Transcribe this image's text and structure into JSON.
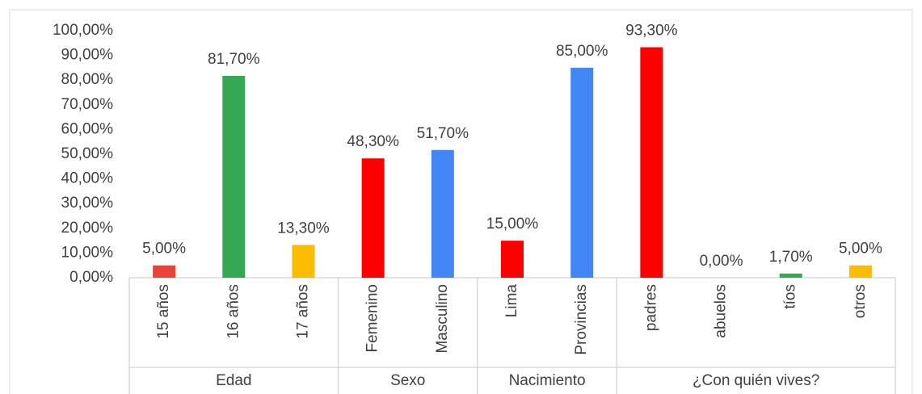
{
  "chart_data": {
    "type": "bar",
    "categories": [
      "15 años",
      "16 años",
      "17 años",
      "Femenino",
      "Masculino",
      "Lima",
      "Provincias",
      "padres",
      "abuelos",
      "tíos",
      "otros"
    ],
    "values": [
      5,
      81.7,
      13.3,
      48.3,
      51.7,
      15,
      85,
      93.3,
      0,
      1.7,
      5
    ],
    "value_labels": [
      "5,00%",
      "81,70%",
      "13,30%",
      "48,30%",
      "51,70%",
      "15,00%",
      "85,00%",
      "93,30%",
      "0,00%",
      "1,70%",
      "5,00%"
    ],
    "colors": [
      "#ea4335",
      "#34a853",
      "#fbbc04",
      "#ff0000",
      "#4285f4",
      "#ff0000",
      "#4285f4",
      "#ff0000",
      "#4285f4",
      "#34a853",
      "#fbbc04"
    ],
    "groups": [
      {
        "name": "Edad",
        "size": 3
      },
      {
        "name": "Sexo",
        "size": 2
      },
      {
        "name": "Nacimiento",
        "size": 2
      },
      {
        "name": "¿Con quién vives?",
        "size": 4
      }
    ],
    "ylim": [
      0,
      100
    ],
    "yticks": [
      {
        "value": 0,
        "label": "0,00%"
      },
      {
        "value": 10,
        "label": "10,00%"
      },
      {
        "value": 20,
        "label": "20,00%"
      },
      {
        "value": 30,
        "label": "30,00%"
      },
      {
        "value": 40,
        "label": "40,00%"
      },
      {
        "value": 50,
        "label": "50,00%"
      },
      {
        "value": 60,
        "label": "60,00%"
      },
      {
        "value": 70,
        "label": "70,00%"
      },
      {
        "value": 80,
        "label": "80,00%"
      },
      {
        "value": 90,
        "label": "90,00%"
      },
      {
        "value": 100,
        "label": "100,00%"
      }
    ],
    "grid": false
  }
}
